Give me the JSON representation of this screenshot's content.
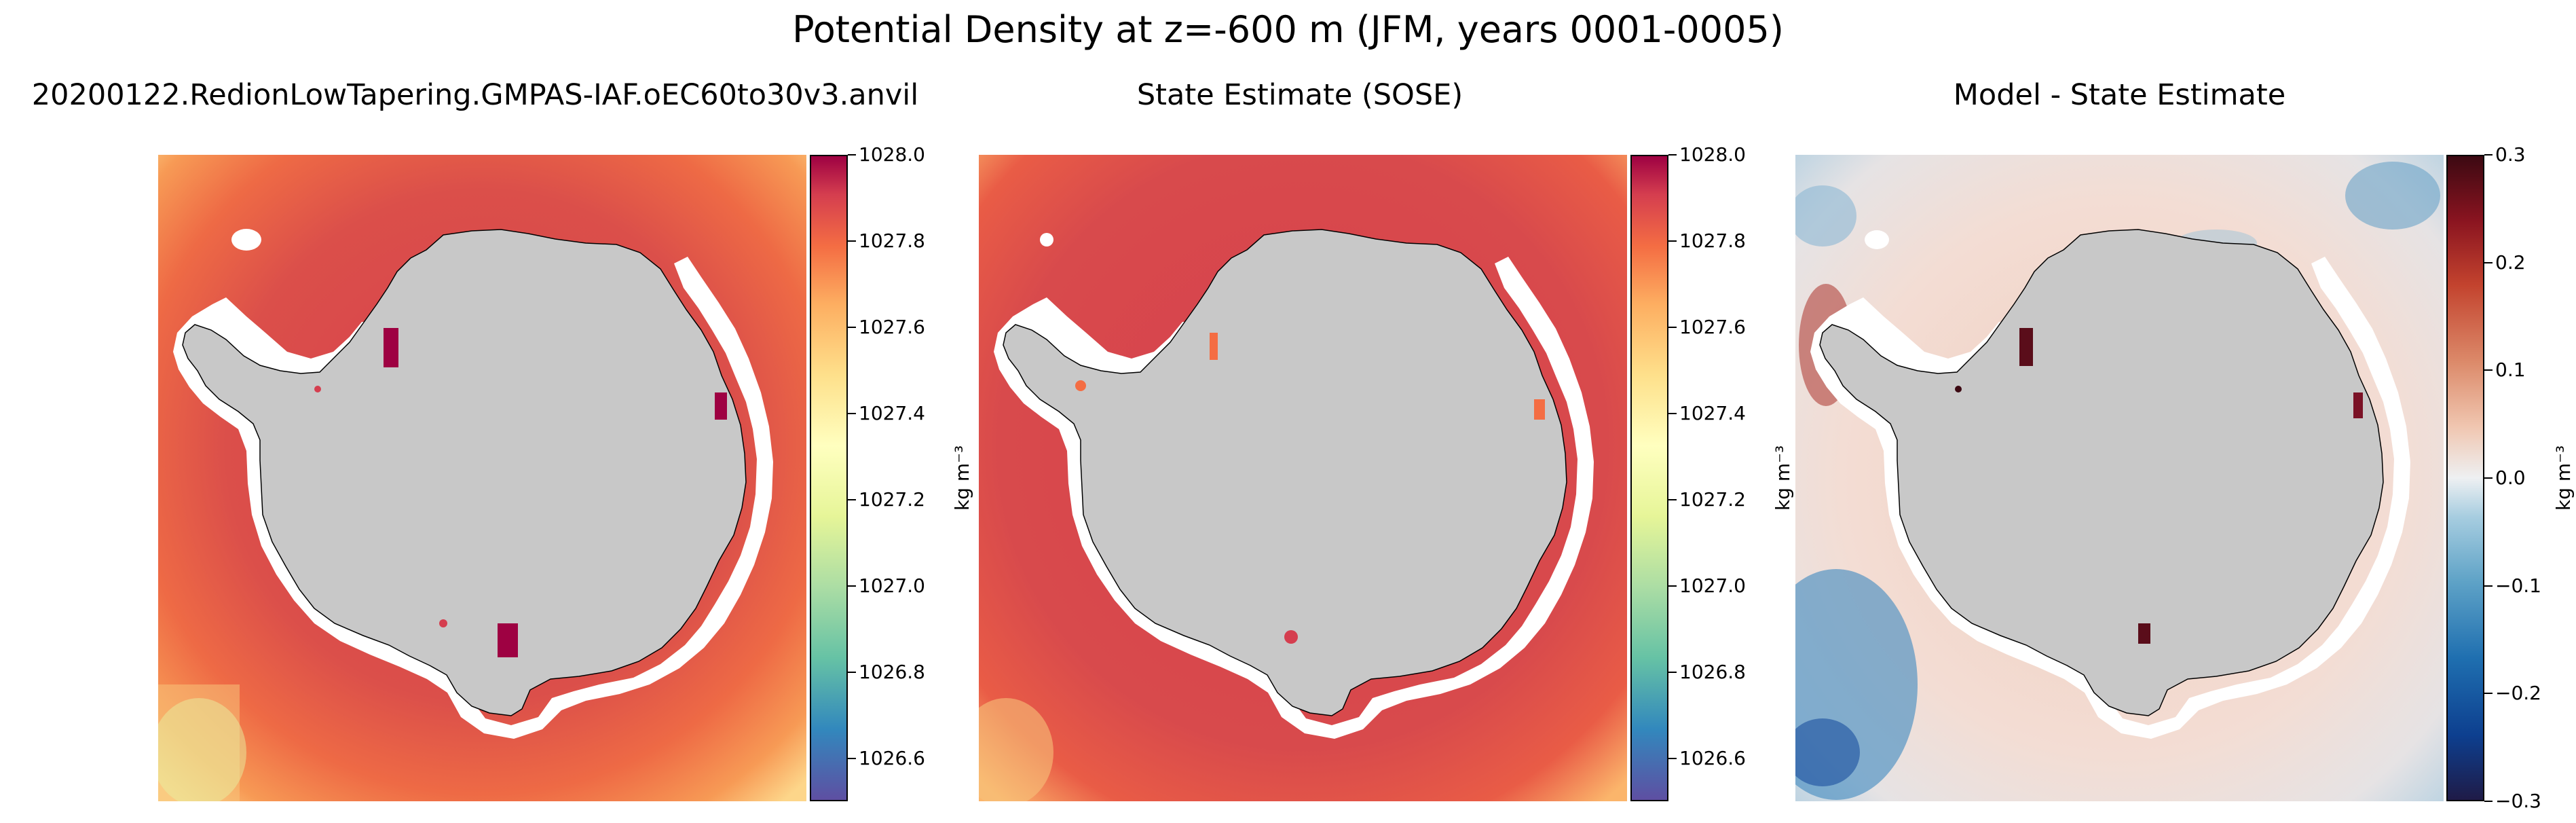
{
  "suptitle": "Potential Density at z=-600 m (JFM, years 0001-0005)",
  "panels": [
    {
      "title": "20200122.RedionLowTapering.GMPAS-IAF.oEC60to30v3.anvil",
      "colorbar": {
        "cmap": "Spectral_r",
        "range": [
          1026.5,
          1028.0
        ],
        "ticks": [
          "1028.0",
          "1027.8",
          "1027.6",
          "1027.4",
          "1027.2",
          "1027.0",
          "1026.8",
          "1026.6"
        ],
        "label": "kg m⁻³"
      }
    },
    {
      "title": "State Estimate (SOSE)",
      "colorbar": {
        "cmap": "Spectral_r",
        "range": [
          1026.5,
          1028.0
        ],
        "ticks": [
          "1028.0",
          "1027.8",
          "1027.6",
          "1027.4",
          "1027.2",
          "1027.0",
          "1026.8",
          "1026.6"
        ],
        "label": "kg m⁻³"
      }
    },
    {
      "title": "Model - State Estimate",
      "colorbar": {
        "cmap": "balance",
        "range": [
          -0.3,
          0.3
        ],
        "ticks": [
          "0.3",
          "0.2",
          "0.1",
          "0.0",
          "−0.1",
          "−0.2",
          "−0.3"
        ],
        "label": "kg m⁻³"
      }
    }
  ],
  "colors": {
    "land": "#c8c8c8",
    "no_data": "#ffffff",
    "coast": "#000000"
  }
}
